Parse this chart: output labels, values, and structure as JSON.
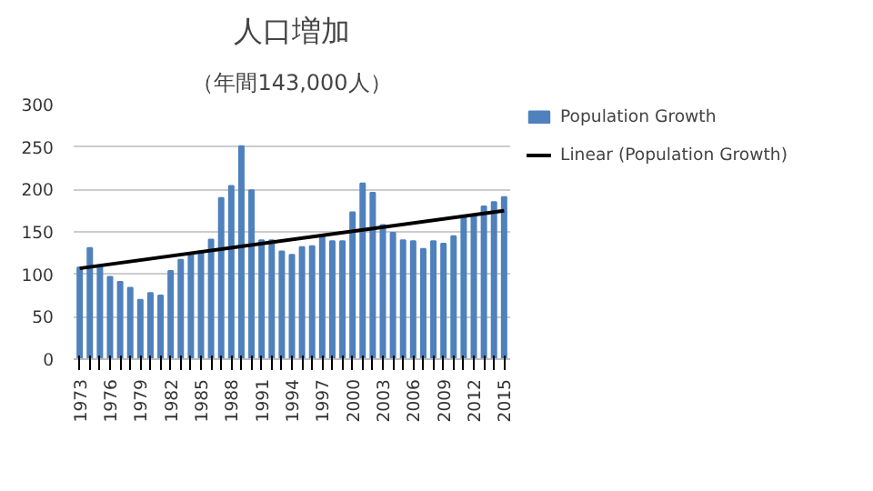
{
  "chart_data": {
    "type": "bar",
    "title": "人口増加",
    "subtitle": "（年間143,000人）",
    "categories": [
      "1973",
      null,
      null,
      "1976",
      null,
      null,
      "1979",
      null,
      null,
      "1982",
      null,
      null,
      "1985",
      null,
      null,
      "1988",
      null,
      null,
      "1991",
      null,
      null,
      "1994",
      null,
      null,
      "1997",
      null,
      null,
      "2000",
      null,
      null,
      "2003",
      null,
      null,
      "2006",
      null,
      null,
      "2009",
      null,
      null,
      "2012",
      null,
      null,
      "2015"
    ],
    "series": [
      {
        "name": "Population Growth",
        "color": "#4f81bd",
        "values": [
          108,
          131,
          110,
          97,
          91,
          84,
          70,
          78,
          75,
          104,
          117,
          125,
          127,
          141,
          190,
          204,
          251,
          199,
          140,
          140,
          127,
          123,
          132,
          133,
          144,
          139,
          139,
          173,
          207,
          196,
          158,
          149,
          140,
          139,
          130,
          139,
          136,
          145,
          168,
          169,
          180,
          185,
          191
        ]
      },
      {
        "name": "Linear (Population Growth)",
        "type": "line",
        "color": "#000000",
        "values": [
          107,
          null,
          null,
          null,
          null,
          null,
          null,
          null,
          null,
          null,
          null,
          null,
          null,
          null,
          null,
          null,
          null,
          null,
          null,
          null,
          null,
          null,
          null,
          null,
          null,
          null,
          null,
          null,
          null,
          null,
          null,
          null,
          null,
          null,
          null,
          null,
          null,
          null,
          null,
          null,
          null,
          null,
          175
        ]
      }
    ],
    "ylim": [
      0,
      300
    ],
    "yticks": [
      0,
      50,
      100,
      150,
      200,
      250,
      300
    ],
    "grid": "y",
    "legend": "right"
  }
}
